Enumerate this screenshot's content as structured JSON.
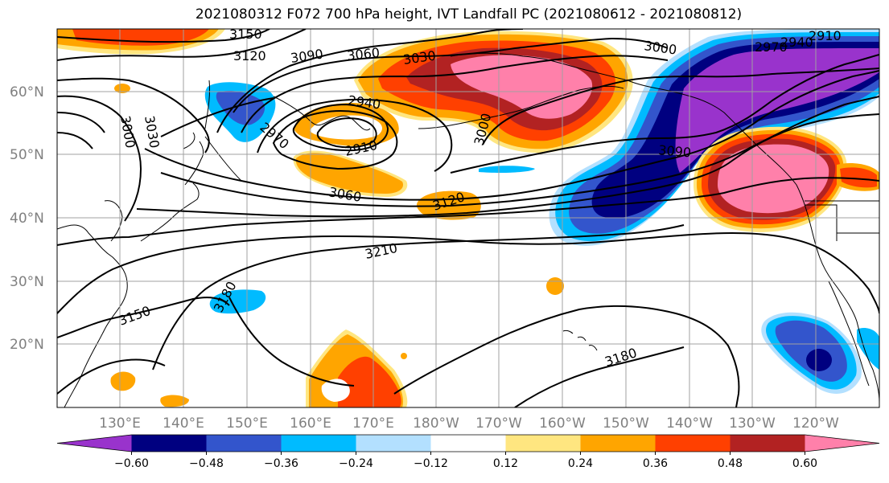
{
  "title": "2021080312 F072 700 hPa height, IVT Landfall PC (2021080612 - 2021080812)",
  "lat_labels": [
    "60°N",
    "50°N",
    "40°N",
    "30°N",
    "20°N"
  ],
  "lon_labels": [
    "130°E",
    "140°E",
    "150°E",
    "160°E",
    "170°E",
    "180°W",
    "170°W",
    "160°W",
    "150°W",
    "140°W",
    "130°W",
    "120°W"
  ],
  "colorbar": {
    "colors": [
      "#9933cc",
      "#000080",
      "#3355cc",
      "#00bbff",
      "#b3e0ff",
      "#ffffff",
      "#ffe680",
      "#ffa500",
      "#ff4000",
      "#b22222",
      "#ff80aa"
    ],
    "tick_labels": [
      "−0.60",
      "−0.48",
      "−0.36",
      "−0.24",
      "−0.12",
      "0.12",
      "0.24",
      "0.36",
      "0.48",
      "0.60"
    ]
  },
  "contour_labels": [
    "3150",
    "3120",
    "3090",
    "3060",
    "3030",
    "3000",
    "2970",
    "2940",
    "2910",
    "3000",
    "3030",
    "3000",
    "2970",
    "2940",
    "2910",
    "3090",
    "3060",
    "3120",
    "3210",
    "3180",
    "3150",
    "3180"
  ],
  "colors": {
    "land_outline": "#000000",
    "grid": "#a0a0a0",
    "contour": "#000000"
  }
}
